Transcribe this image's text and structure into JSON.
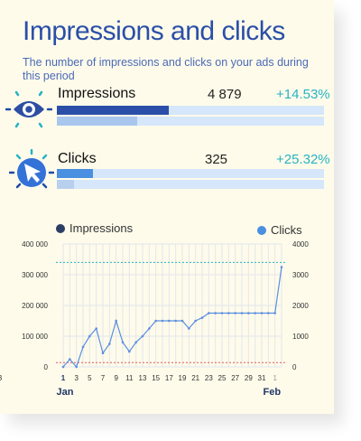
{
  "card": {
    "title": "Impressions and clicks",
    "subtitle": "The number of impressions and clicks on your ads during this period"
  },
  "metrics": [
    {
      "name": "Impressions",
      "value": "4 879",
      "change": "+14.53%",
      "icon": "eye-icon",
      "current_fraction": 0.42,
      "previous_fraction": 0.3,
      "current_color": "#2b4fa8",
      "previous_color": "#a9c6ef"
    },
    {
      "name": "Clicks",
      "value": "325",
      "change": "+25.32%",
      "icon": "cursor-icon",
      "current_fraction": 0.135,
      "previous_fraction": 0.065,
      "current_color": "#4a8fe0",
      "previous_color": "#b9cfee"
    }
  ],
  "colors": {
    "accent": "#2b4fa8",
    "change_positive": "#27b3c4",
    "impressions_dot": "#2c3e66",
    "clicks_dot": "#4a8fe0",
    "line": "#5b8fe0",
    "cyan_ref": "#27b3c4",
    "red_ref": "#e05a5a"
  },
  "chart_data": {
    "type": "line",
    "legend": [
      "Impressions",
      "Clicks"
    ],
    "legend_placement": "top",
    "x": [
      1,
      2,
      3,
      4,
      5,
      6,
      7,
      8,
      9,
      10,
      11,
      12,
      13,
      14,
      15,
      16,
      17,
      18,
      19,
      20,
      21,
      22,
      23,
      24,
      25,
      26,
      27,
      28,
      29,
      30,
      31,
      32,
      33,
      34
    ],
    "x_tick_labels": [
      "1",
      "3",
      "5",
      "7",
      "9",
      "11",
      "13",
      "15",
      "17",
      "19",
      "21",
      "23",
      "25",
      "27",
      "29",
      "31",
      "1",
      "3"
    ],
    "month_labels": [
      "Jan",
      "Feb"
    ],
    "y_left_ticks": [
      "400 000",
      "300 000",
      "200 000",
      "100 000",
      "0"
    ],
    "y_right_ticks": [
      "4000",
      "3000",
      "2000",
      "1000",
      "0"
    ],
    "ylim_left": [
      0,
      400000
    ],
    "ylim_right": [
      0,
      4000
    ],
    "series": [
      {
        "name": "Clicks",
        "axis": "right",
        "values": [
          0,
          250,
          0,
          650,
          1000,
          1250,
          450,
          750,
          1500,
          800,
          500,
          800,
          1000,
          1250,
          1500,
          1500,
          1500,
          1500,
          1500,
          1250,
          1500,
          1600,
          1750,
          1750,
          1750,
          1750,
          1750,
          1750,
          1750,
          1750,
          1750,
          1750,
          1750,
          3250
        ]
      }
    ],
    "reference_lines": [
      {
        "axis": "left",
        "value": 340000,
        "color": "#27b3c4"
      },
      {
        "axis": "left",
        "value": 14000,
        "color": "#e05a5a"
      }
    ],
    "grid": true
  }
}
